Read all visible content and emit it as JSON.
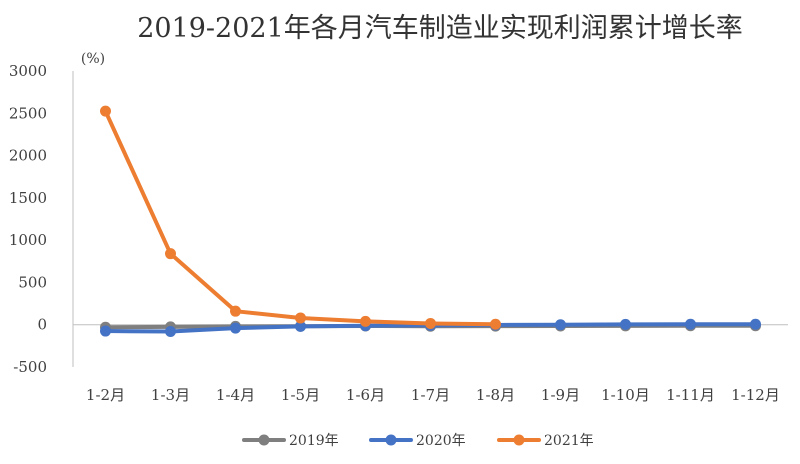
{
  "chart_data": {
    "type": "line",
    "title": "2019-2021年各月汽车制造业实现利润累计增长率",
    "unit_label": "(%)",
    "categories": [
      "1-2月",
      "1-3月",
      "1-4月",
      "1-5月",
      "1-6月",
      "1-7月",
      "1-8月",
      "1-9月",
      "1-10月",
      "1-11月",
      "1-12月"
    ],
    "ylim": [
      -500,
      3000
    ],
    "yticks": [
      -500,
      0,
      500,
      1000,
      1500,
      2000,
      2500,
      3000
    ],
    "grid": false,
    "legend_position": "bottom",
    "series": [
      {
        "name": "2019年",
        "color": "#7f7f7f",
        "values": [
          -30,
          -25,
          -20,
          -18,
          -15,
          -18,
          -17,
          -15,
          -14,
          -12,
          -12
        ]
      },
      {
        "name": "2020年",
        "color": "#4472c4",
        "values": [
          -75,
          -80,
          -40,
          -20,
          -12,
          -8,
          -3,
          0,
          4,
          5,
          5
        ]
      },
      {
        "name": "2021年",
        "color": "#ed7d31",
        "values": [
          2525,
          840,
          160,
          80,
          40,
          15,
          5,
          null,
          null,
          null,
          null
        ]
      }
    ]
  }
}
